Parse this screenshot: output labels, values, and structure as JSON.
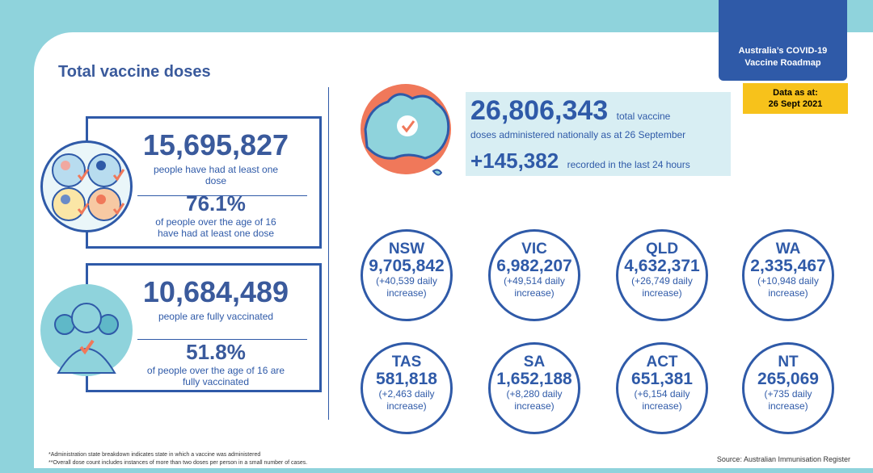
{
  "header": {
    "title": "Total vaccine doses",
    "roadmap_line1": "Australia’s COVID-19",
    "roadmap_line2": "Vaccine Roadmap",
    "asat_label": "Data as at:",
    "asat_date": "26 Sept 2021"
  },
  "first_dose": {
    "count": "15,695,827",
    "caption_line1": "people have had at least one",
    "caption_line2": "dose",
    "percent": "76.1%",
    "pct_caption_line1": "of people over the age of 16",
    "pct_caption_line2": "have had at least one dose"
  },
  "fully": {
    "count": "10,684,489",
    "caption": "people are fully vaccinated",
    "percent": "51.8%",
    "pct_caption_line1": "of people over the age of 16 are",
    "pct_caption_line2": "fully vaccinated"
  },
  "national": {
    "total": "26,806,343",
    "total_suffix": "total vaccine",
    "total_caption": "doses administered nationally as at 26 September",
    "recent": "+145,382",
    "recent_caption": "recorded in the last 24 hours"
  },
  "states": [
    {
      "name": "NSW",
      "value": "9,705,842",
      "daily1": "(+40,539 daily",
      "daily2": "increase)"
    },
    {
      "name": "VIC",
      "value": "6,982,207",
      "daily1": "(+49,514 daily",
      "daily2": "increase)"
    },
    {
      "name": "QLD",
      "value": "4,632,371",
      "daily1": "(+26,749 daily",
      "daily2": "increase)"
    },
    {
      "name": "WA",
      "value": "2,335,467",
      "daily1": "(+10,948 daily",
      "daily2": "increase)"
    },
    {
      "name": "TAS",
      "value": "581,818",
      "daily1": "(+2,463 daily",
      "daily2": "increase)"
    },
    {
      "name": "SA",
      "value": "1,652,188",
      "daily1": "(+8,280 daily",
      "daily2": "increase)"
    },
    {
      "name": "ACT",
      "value": "651,381",
      "daily1": "(+6,154 daily",
      "daily2": "increase)"
    },
    {
      "name": "NT",
      "value": "265,069",
      "daily1": "(+735 daily",
      "daily2": "increase)"
    }
  ],
  "footnotes": {
    "note1": "*Administration state breakdown indicates state in which a vaccine was administered",
    "note2": "**Overall dose count includes instances of more than two doses per person in a small number of cases.",
    "source": "Source: Australian Immunisation Register"
  },
  "colors": {
    "accent": "#2f5aa8",
    "teal": "#8fd3dc",
    "orange": "#f0785a",
    "yellow": "#f7c21b",
    "banner": "#d8eef3"
  }
}
